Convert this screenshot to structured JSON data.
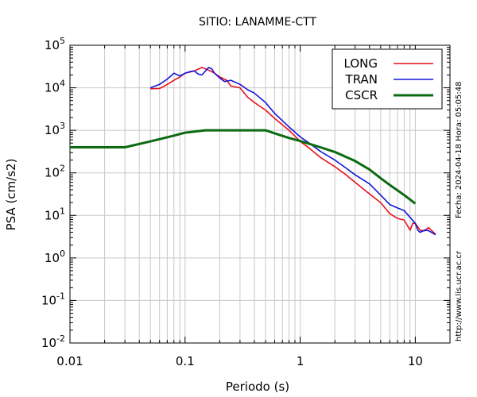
{
  "chart_data": {
    "type": "line",
    "title": "SITIO: LANAMME-CTT",
    "xlabel": "Periodo (s)",
    "ylabel": "PSA (cm/s2)",
    "x_scale": "log",
    "y_scale": "log",
    "xlim": [
      0.01,
      20
    ],
    "ylim": [
      0.01,
      100000
    ],
    "x_ticks": [
      {
        "value": 0.01,
        "label": "0.01"
      },
      {
        "value": 0.1,
        "label": "0.1"
      },
      {
        "value": 1,
        "label": "1"
      },
      {
        "value": 10,
        "label": "10"
      }
    ],
    "y_ticks": [
      {
        "value": 0.01,
        "base": "10",
        "exp": "-2"
      },
      {
        "value": 0.1,
        "base": "10",
        "exp": "-1"
      },
      {
        "value": 1,
        "base": "10",
        "exp": "0"
      },
      {
        "value": 10,
        "base": "10",
        "exp": "1"
      },
      {
        "value": 100,
        "base": "10",
        "exp": "2"
      },
      {
        "value": 1000,
        "base": "10",
        "exp": "3"
      },
      {
        "value": 10000,
        "base": "10",
        "exp": "4"
      },
      {
        "value": 100000,
        "base": "10",
        "exp": "5"
      }
    ],
    "grid": true,
    "legend_position": "top-right",
    "side_text": {
      "right_top": "Fecha: 2024-04-18 Hora: 05:05:48",
      "right_bottom": "http://www.lis.ucr.ac.cr"
    },
    "series": [
      {
        "name": "LONG",
        "color": "#e8101a",
        "points": [
          [
            0.05,
            9500
          ],
          [
            0.06,
            9600
          ],
          [
            0.07,
            12000
          ],
          [
            0.08,
            15000
          ],
          [
            0.09,
            18000
          ],
          [
            0.1,
            22000
          ],
          [
            0.12,
            25000
          ],
          [
            0.14,
            30000
          ],
          [
            0.16,
            26000
          ],
          [
            0.18,
            22000
          ],
          [
            0.2,
            18000
          ],
          [
            0.23,
            15000
          ],
          [
            0.25,
            11000
          ],
          [
            0.3,
            10000
          ],
          [
            0.35,
            6000
          ],
          [
            0.4,
            4500
          ],
          [
            0.5,
            3000
          ],
          [
            0.6,
            1900
          ],
          [
            0.8,
            1000
          ],
          [
            1.0,
            550
          ],
          [
            1.2,
            380
          ],
          [
            1.5,
            230
          ],
          [
            2.0,
            140
          ],
          [
            2.5,
            90
          ],
          [
            3.0,
            60
          ],
          [
            4.0,
            32
          ],
          [
            5.0,
            20
          ],
          [
            6.0,
            11
          ],
          [
            7.0,
            8.5
          ],
          [
            8.0,
            7.8
          ],
          [
            9.0,
            4.5
          ],
          [
            9.5,
            6.5
          ],
          [
            10.0,
            6.5
          ],
          [
            11.0,
            4.5
          ],
          [
            12.0,
            4.3
          ],
          [
            13.0,
            5.2
          ],
          [
            14.0,
            4.3
          ],
          [
            15.0,
            3.6
          ]
        ]
      },
      {
        "name": "TRAN",
        "color": "#1016d8",
        "points": [
          [
            0.05,
            10000
          ],
          [
            0.06,
            12000
          ],
          [
            0.07,
            16000
          ],
          [
            0.08,
            22000
          ],
          [
            0.09,
            19000
          ],
          [
            0.1,
            22000
          ],
          [
            0.11,
            24000
          ],
          [
            0.12,
            25000
          ],
          [
            0.13,
            21000
          ],
          [
            0.14,
            20000
          ],
          [
            0.16,
            30000
          ],
          [
            0.17,
            28000
          ],
          [
            0.18,
            22000
          ],
          [
            0.2,
            17000
          ],
          [
            0.22,
            14000
          ],
          [
            0.25,
            15000
          ],
          [
            0.3,
            12000
          ],
          [
            0.35,
            9000
          ],
          [
            0.4,
            7500
          ],
          [
            0.5,
            4500
          ],
          [
            0.6,
            2500
          ],
          [
            0.8,
            1200
          ],
          [
            1.0,
            700
          ],
          [
            1.2,
            500
          ],
          [
            1.5,
            320
          ],
          [
            2.0,
            200
          ],
          [
            2.5,
            130
          ],
          [
            3.0,
            90
          ],
          [
            4.0,
            55
          ],
          [
            5.0,
            30
          ],
          [
            6.0,
            18
          ],
          [
            7.0,
            15
          ],
          [
            8.0,
            13
          ],
          [
            9.0,
            9
          ],
          [
            10.0,
            6.5
          ],
          [
            10.5,
            4.5
          ],
          [
            11.0,
            4.0
          ],
          [
            12.0,
            4.5
          ],
          [
            13.0,
            4.4
          ],
          [
            15.0,
            3.5
          ]
        ]
      },
      {
        "name": "CSCR",
        "color": "#0c6a10",
        "points": [
          [
            0.01,
            400
          ],
          [
            0.03,
            400
          ],
          [
            0.05,
            550
          ],
          [
            0.08,
            750
          ],
          [
            0.1,
            880
          ],
          [
            0.15,
            1000
          ],
          [
            0.2,
            1000
          ],
          [
            0.3,
            1000
          ],
          [
            0.5,
            1000
          ],
          [
            0.6,
            850
          ],
          [
            0.8,
            660
          ],
          [
            1.0,
            560
          ],
          [
            1.5,
            400
          ],
          [
            2.0,
            310
          ],
          [
            3.0,
            190
          ],
          [
            4.0,
            120
          ],
          [
            5.0,
            75
          ],
          [
            6.0,
            52
          ],
          [
            8.0,
            30
          ],
          [
            10.0,
            19
          ]
        ]
      }
    ]
  }
}
